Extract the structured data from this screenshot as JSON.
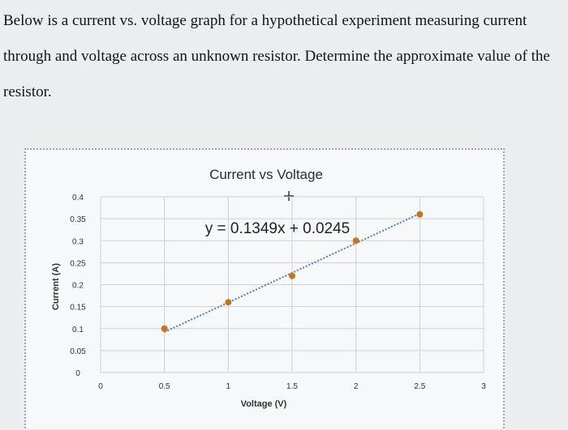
{
  "question": {
    "text": "Below is a current vs. voltage graph for a hypothetical experiment measuring current through and voltage across an unknown resistor. Determine the approximate value of the resistor."
  },
  "chart_data": {
    "type": "scatter",
    "title": "Current vs Voltage",
    "xlabel": "Voltage (V)",
    "ylabel": "Current (A)",
    "xlim": [
      0,
      3
    ],
    "ylim": [
      0,
      0.4
    ],
    "x_ticks": [
      "0",
      "0.5",
      "1",
      "1.5",
      "2",
      "2.5",
      "3"
    ],
    "y_ticks": [
      "0",
      "0.05",
      "0.1",
      "0.15",
      "0.2",
      "0.25",
      "0.3",
      "0.35",
      "0.4"
    ],
    "grid": true,
    "series": [
      {
        "x": [
          0.5,
          1.0,
          1.5,
          2.0,
          2.5
        ],
        "y": [
          0.1,
          0.16,
          0.22,
          0.3,
          0.36
        ]
      }
    ],
    "trendline": {
      "slope": 0.1349,
      "intercept": 0.0245,
      "x_range": [
        0.5,
        2.5
      ]
    },
    "equation_label": "y = 0.1349x + 0.0245",
    "colors": {
      "marker": "#c8751a",
      "trendline": "#4a7fc1",
      "grid": "#d0d0d0"
    }
  }
}
